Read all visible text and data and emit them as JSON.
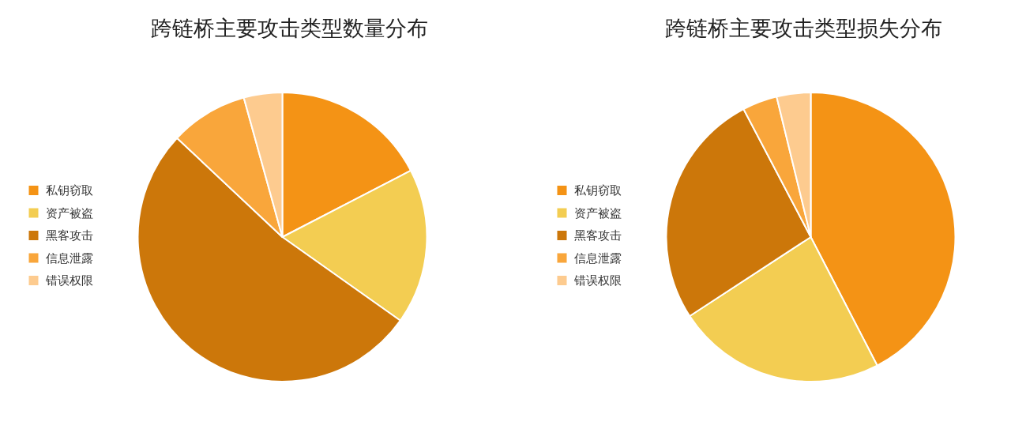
{
  "chart_data": [
    {
      "type": "pie",
      "title": "跨链桥主要攻击类型数量分布",
      "categories": [
        "私钥窃取",
        "资产被盗",
        "黑客攻击",
        "信息泄露",
        "错误权限"
      ],
      "values": [
        17.4,
        17.4,
        52.2,
        8.7,
        4.3
      ],
      "colors": [
        "#f49315",
        "#f3cd52",
        "#cc770a",
        "#f9a63b",
        "#fdcb8f"
      ],
      "legend": "left"
    },
    {
      "type": "pie",
      "title": "跨链桥主要攻击类型损失分布",
      "categories": [
        "私钥窃取",
        "资产被盗",
        "黑客攻击",
        "信息泄露",
        "错误权限"
      ],
      "values": [
        42.4,
        23.4,
        26.5,
        3.9,
        3.8
      ],
      "colors": [
        "#f49315",
        "#f3cd52",
        "#cc770a",
        "#f9a63b",
        "#fdcb8f"
      ],
      "legend": "left"
    }
  ]
}
